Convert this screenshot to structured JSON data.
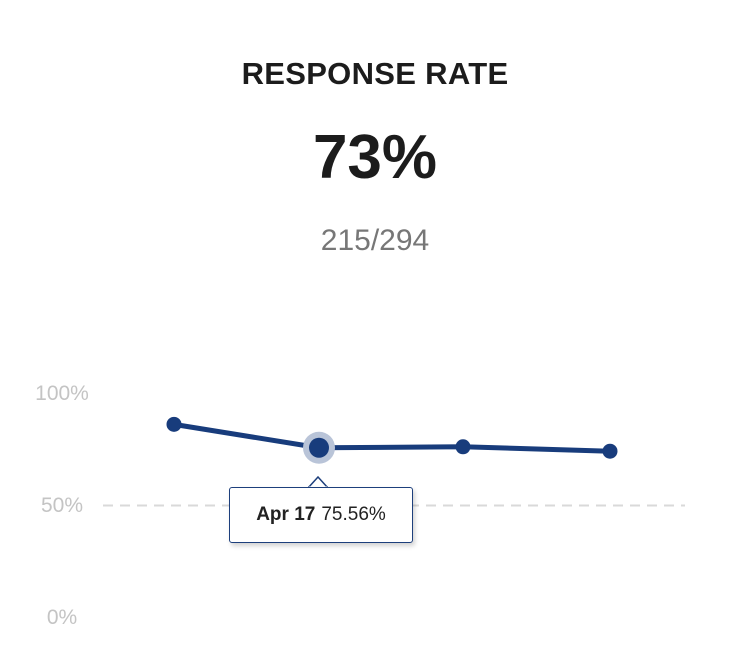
{
  "header": {
    "title": "RESPONSE RATE",
    "value": "73%",
    "ratio": "215/294"
  },
  "tooltip": {
    "date": "Apr 17",
    "value": "75.56%"
  },
  "colors": {
    "line": "#183c7c",
    "grid": "#d9d9d9",
    "tick": "#c4c4c4",
    "halo": "#b9c4d8"
  },
  "chart_data": {
    "type": "line",
    "x": [
      "",
      "Apr 17",
      "",
      ""
    ],
    "series": [
      {
        "values": [
          86,
          75.56,
          76,
          74
        ]
      }
    ],
    "ylim": [
      0,
      100
    ],
    "yticks": [
      "0%",
      "50%",
      "100%"
    ],
    "gridline_at": 50,
    "highlighted_index": 1
  }
}
